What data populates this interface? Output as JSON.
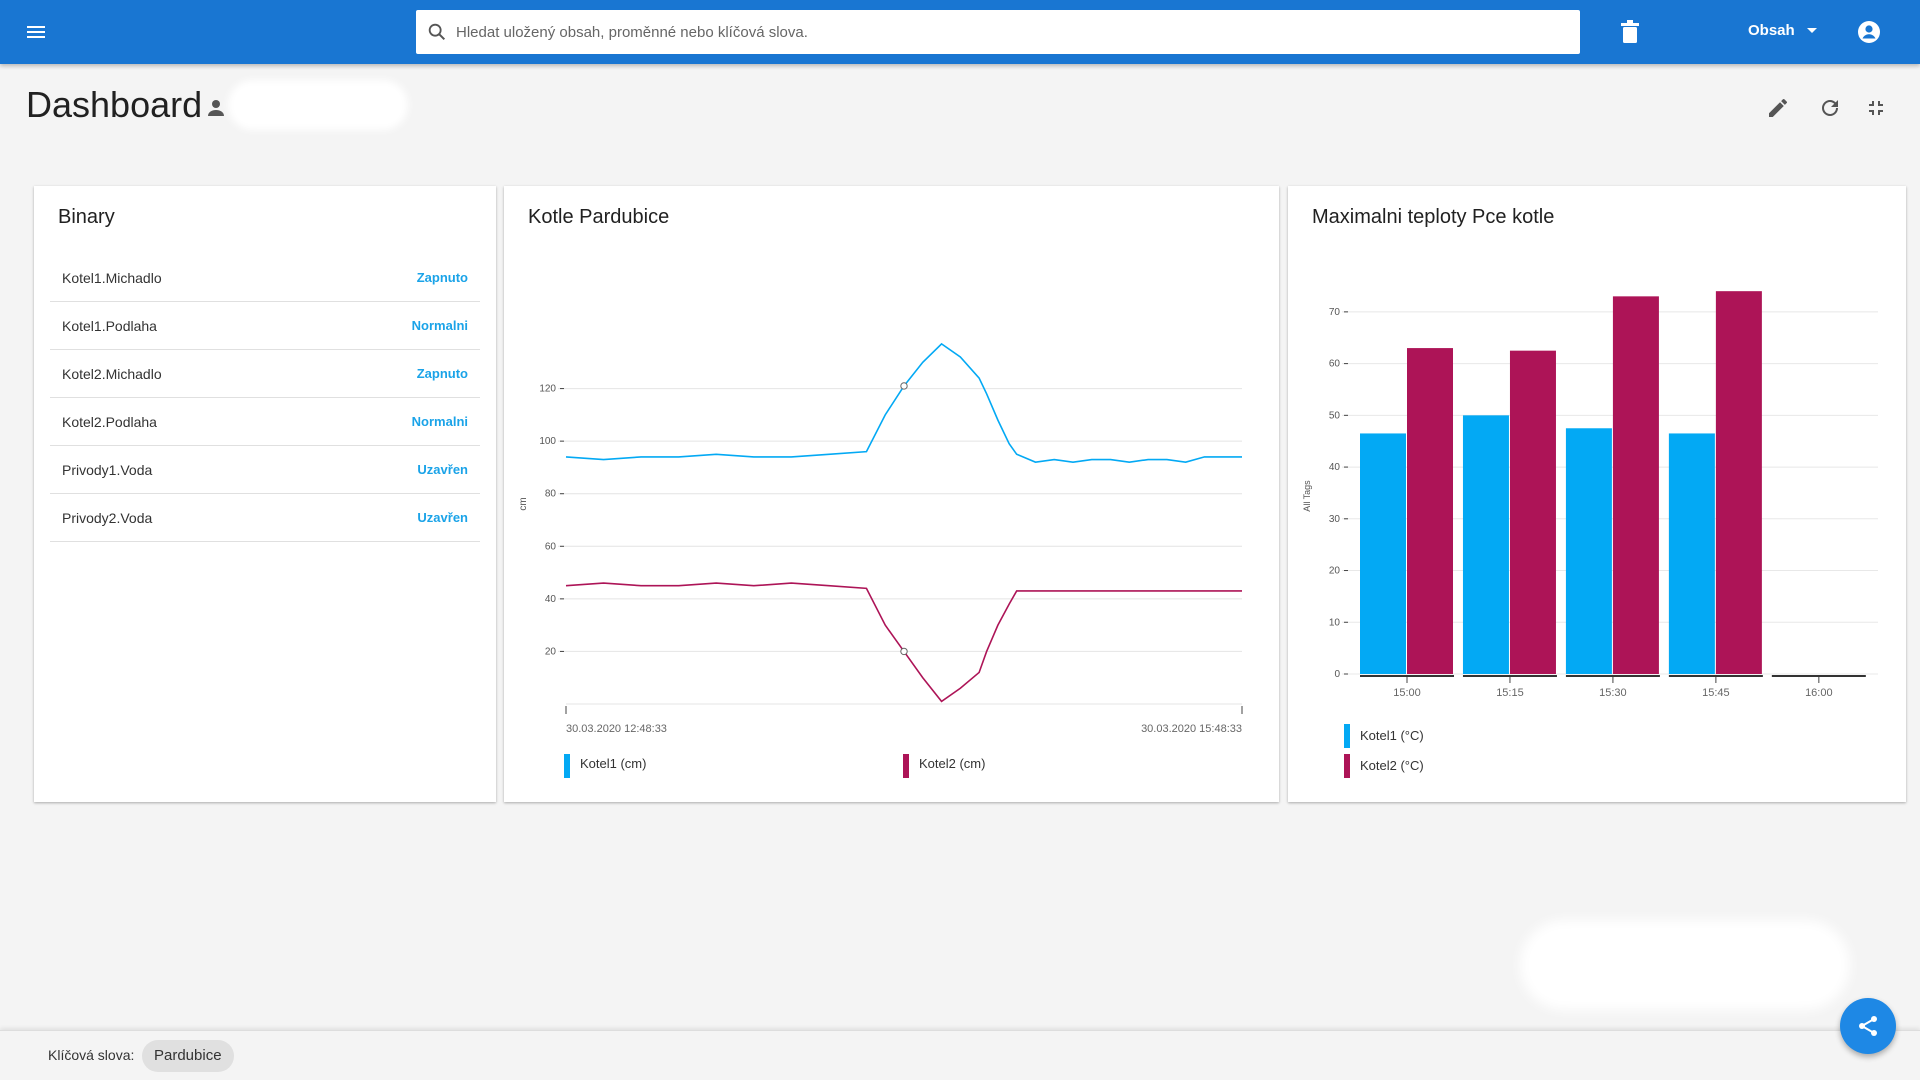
{
  "topbar": {
    "search_placeholder": "Hledat uložený obsah, proměnné nebo klíčová slova.",
    "content_menu_label": "Obsah"
  },
  "header": {
    "title": "Dashboard"
  },
  "binary": {
    "title": "Binary",
    "rows": [
      {
        "name": "Kotel1.Michadlo",
        "value": "Zapnuto"
      },
      {
        "name": "Kotel1.Podlaha",
        "value": "Normalni"
      },
      {
        "name": "Kotel2.Michadlo",
        "value": "Zapnuto"
      },
      {
        "name": "Kotel2.Podlaha",
        "value": "Normalni"
      },
      {
        "name": "Privody1.Voda",
        "value": "Uzavřen"
      },
      {
        "name": "Privody2.Voda",
        "value": "Uzavřen"
      }
    ]
  },
  "line_chart": {
    "title": "Kotle Pardubice"
  },
  "bar_chart": {
    "title": "Maximalni teploty Pce kotle"
  },
  "footer": {
    "keywords_label": "Klíčová slova:",
    "keyword_chip": "Pardubice"
  },
  "colors": {
    "primary": "#1976d2",
    "series1": "#03a9f4",
    "series2": "#ad1457",
    "accent_text": "#1aa3e8"
  },
  "chart_data": [
    {
      "type": "line",
      "title": "Kotle Pardubice",
      "ylabel": "cm",
      "ylim": [
        0,
        140
      ],
      "yticks": [
        20,
        40,
        60,
        80,
        100,
        120
      ],
      "x_start_label": "30.03.2020 12:48:33",
      "x_end_label": "30.03.2020 15:48:33",
      "x_unit": "minutes",
      "series": [
        {
          "name": "Kotel1 (cm)",
          "color": "#03a9f4",
          "x": [
            0,
            10,
            20,
            30,
            40,
            50,
            60,
            70,
            80,
            85,
            90,
            95,
            100,
            105,
            110,
            112,
            115,
            118,
            120,
            125,
            130,
            135,
            140,
            145,
            150,
            155,
            160,
            165,
            170,
            175,
            180
          ],
          "values": [
            94,
            93,
            94,
            94,
            95,
            94,
            94,
            95,
            96,
            110,
            121,
            130,
            137,
            132,
            124,
            118,
            108,
            99,
            95,
            92,
            93,
            92,
            93,
            93,
            92,
            93,
            93,
            92,
            94,
            94,
            94
          ]
        },
        {
          "name": "Kotel2 (cm)",
          "color": "#ad1457",
          "x": [
            0,
            10,
            20,
            30,
            40,
            50,
            60,
            70,
            80,
            85,
            90,
            95,
            100,
            105,
            110,
            112,
            115,
            118,
            120,
            125,
            130,
            135,
            140,
            145,
            150,
            155,
            160,
            165,
            170,
            175,
            180
          ],
          "values": [
            45,
            46,
            45,
            45,
            46,
            45,
            46,
            45,
            44,
            30,
            20,
            10,
            1,
            6,
            12,
            20,
            30,
            38,
            43,
            43,
            43,
            43,
            43,
            43,
            43,
            43,
            43,
            43,
            43,
            43,
            43
          ]
        }
      ]
    },
    {
      "type": "bar",
      "title": "Maximalni teploty Pce kotle",
      "ylabel": "All Tags",
      "ylim": [
        0,
        75
      ],
      "yticks": [
        0,
        10,
        20,
        30,
        40,
        50,
        60,
        70
      ],
      "categories": [
        "15:00",
        "15:15",
        "15:30",
        "15:45",
        "16:00"
      ],
      "series": [
        {
          "name": "Kotel1 (°C)",
          "color": "#03a9f4",
          "values": [
            46.5,
            50,
            47.5,
            46.5,
            null
          ]
        },
        {
          "name": "Kotel2 (°C)",
          "color": "#ad1457",
          "values": [
            63,
            62.5,
            73,
            74,
            null
          ]
        }
      ]
    }
  ]
}
